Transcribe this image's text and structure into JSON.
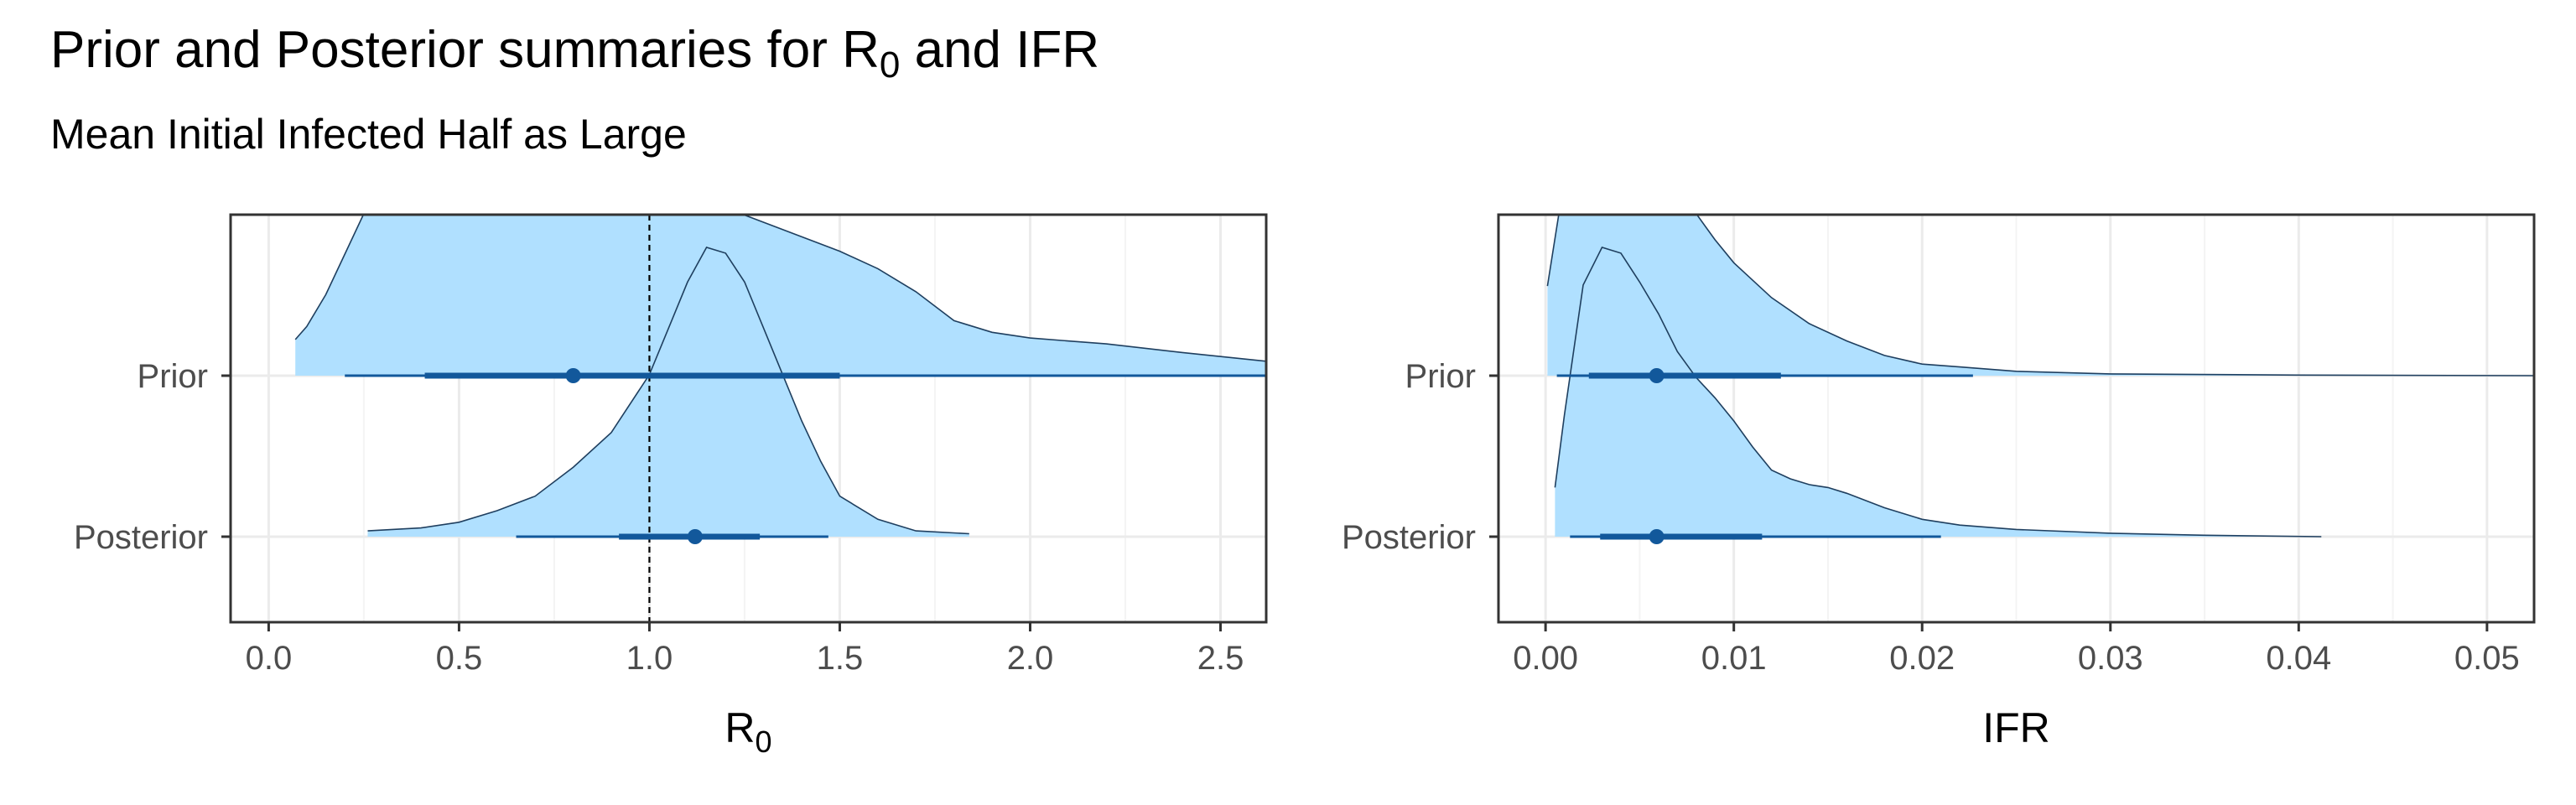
{
  "title": {
    "prefix": "Prior and Posterior summaries for R",
    "sub": "0",
    "suffix": " and IFR"
  },
  "subtitle": "Mean Initial Infected Half as Large",
  "colors": {
    "fill": "#B0E0FF",
    "outline": "#1F3F5F",
    "interval": "#12589B",
    "grid": "#EBEBEB",
    "ref_line": "#000000"
  },
  "chart_data": [
    {
      "type": "halfeye",
      "xlabel": {
        "main": "R",
        "sub": "0"
      },
      "categories": [
        "Prior",
        "Posterior"
      ],
      "xlim": [
        -0.1,
        2.62
      ],
      "x_ticks": [
        0,
        0.5,
        1,
        1.5,
        2,
        2.5
      ],
      "x_tick_labels": [
        "0.0",
        "0.5",
        "1.0",
        "1.5",
        "2.0",
        "2.5"
      ],
      "reference_line": 1.0,
      "series": [
        {
          "name": "Prior",
          "density": [
            [
              0.07,
              0.125
            ],
            [
              0.1,
              0.17
            ],
            [
              0.15,
              0.28
            ],
            [
              0.2,
              0.42
            ],
            [
              0.25,
              0.56
            ],
            [
              0.3,
              0.7
            ],
            [
              0.35,
              0.82
            ],
            [
              0.4,
              0.91
            ],
            [
              0.45,
              0.97
            ],
            [
              0.5,
              1.0
            ],
            [
              0.55,
              0.99
            ],
            [
              0.6,
              0.97
            ],
            [
              0.65,
              0.93
            ],
            [
              0.7,
              0.88
            ],
            [
              0.75,
              0.85
            ],
            [
              0.8,
              0.83
            ],
            [
              0.85,
              0.81
            ],
            [
              0.9,
              0.78
            ],
            [
              0.95,
              0.74
            ],
            [
              1.0,
              0.7
            ],
            [
              1.1,
              0.63
            ],
            [
              1.2,
              0.58
            ],
            [
              1.3,
              0.53
            ],
            [
              1.4,
              0.48
            ],
            [
              1.5,
              0.43
            ],
            [
              1.6,
              0.37
            ],
            [
              1.7,
              0.29
            ],
            [
              1.8,
              0.19
            ],
            [
              1.9,
              0.15
            ],
            [
              2.0,
              0.13
            ],
            [
              2.2,
              0.11
            ],
            [
              2.4,
              0.08
            ],
            [
              2.62,
              0.05
            ]
          ],
          "point": 0.8,
          "interval_66": [
            0.41,
            1.5
          ],
          "interval_95": [
            0.2,
            2.62
          ]
        },
        {
          "name": "Posterior",
          "density": [
            [
              0.26,
              0.02
            ],
            [
              0.4,
              0.03
            ],
            [
              0.5,
              0.05
            ],
            [
              0.6,
              0.09
            ],
            [
              0.7,
              0.14
            ],
            [
              0.8,
              0.24
            ],
            [
              0.9,
              0.36
            ],
            [
              1.0,
              0.56
            ],
            [
              1.05,
              0.72
            ],
            [
              1.1,
              0.88
            ],
            [
              1.15,
              1.0
            ],
            [
              1.2,
              0.98
            ],
            [
              1.25,
              0.88
            ],
            [
              1.3,
              0.72
            ],
            [
              1.35,
              0.56
            ],
            [
              1.4,
              0.4
            ],
            [
              1.45,
              0.26
            ],
            [
              1.5,
              0.14
            ],
            [
              1.6,
              0.06
            ],
            [
              1.7,
              0.02
            ],
            [
              1.84,
              0.01
            ]
          ],
          "point": 1.12,
          "interval_66": [
            0.92,
            1.29
          ],
          "interval_95": [
            0.65,
            1.47
          ]
        }
      ]
    },
    {
      "type": "halfeye",
      "xlabel": {
        "main": "IFR",
        "sub": ""
      },
      "categories": [
        "Prior",
        "Posterior"
      ],
      "xlim": [
        -0.0025,
        0.0525
      ],
      "x_ticks": [
        0,
        0.01,
        0.02,
        0.03,
        0.04,
        0.05
      ],
      "x_tick_labels": [
        "0.00",
        "0.01",
        "0.02",
        "0.03",
        "0.04",
        "0.05"
      ],
      "series": [
        {
          "name": "Prior",
          "density": [
            [
              0.0001,
              0.31
            ],
            [
              0.001,
              0.68
            ],
            [
              0.002,
              0.92
            ],
            [
              0.003,
              1.0
            ],
            [
              0.004,
              0.96
            ],
            [
              0.005,
              0.83
            ],
            [
              0.006,
              0.72
            ],
            [
              0.007,
              0.64
            ],
            [
              0.008,
              0.56
            ],
            [
              0.009,
              0.47
            ],
            [
              0.01,
              0.39
            ],
            [
              0.012,
              0.27
            ],
            [
              0.014,
              0.18
            ],
            [
              0.016,
              0.12
            ],
            [
              0.018,
              0.07
            ],
            [
              0.02,
              0.04
            ],
            [
              0.022,
              0.03
            ],
            [
              0.025,
              0.015
            ],
            [
              0.03,
              0.006
            ],
            [
              0.04,
              0.002
            ],
            [
              0.0525,
              0.0
            ]
          ],
          "point": 0.0059,
          "interval_66": [
            0.0023,
            0.0125
          ],
          "interval_95": [
            0.0006,
            0.0227
          ]
        },
        {
          "name": "Posterior",
          "density": [
            [
              0.0005,
              0.17
            ],
            [
              0.001,
              0.42
            ],
            [
              0.002,
              0.87
            ],
            [
              0.003,
              1.0
            ],
            [
              0.004,
              0.98
            ],
            [
              0.005,
              0.88
            ],
            [
              0.006,
              0.77
            ],
            [
              0.007,
              0.64
            ],
            [
              0.008,
              0.55
            ],
            [
              0.009,
              0.48
            ],
            [
              0.01,
              0.4
            ],
            [
              0.011,
              0.31
            ],
            [
              0.012,
              0.23
            ],
            [
              0.013,
              0.2
            ],
            [
              0.014,
              0.18
            ],
            [
              0.015,
              0.17
            ],
            [
              0.016,
              0.15
            ],
            [
              0.018,
              0.1
            ],
            [
              0.02,
              0.06
            ],
            [
              0.022,
              0.04
            ],
            [
              0.025,
              0.025
            ],
            [
              0.03,
              0.012
            ],
            [
              0.035,
              0.005
            ],
            [
              0.0412,
              0.0
            ]
          ],
          "point": 0.0059,
          "interval_66": [
            0.0029,
            0.0115
          ],
          "interval_95": [
            0.0013,
            0.021
          ]
        }
      ]
    }
  ]
}
